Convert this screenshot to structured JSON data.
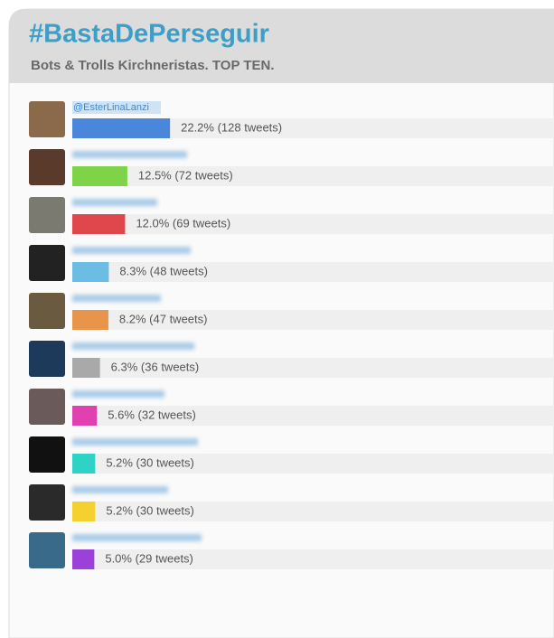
{
  "chart_data": {
    "type": "bar",
    "orientation": "horizontal",
    "title": "#BastaDePerseguir",
    "subtitle": "Bots & Trolls Kirchneristas. TOP TEN.",
    "categories": [
      "@EsterLinaLanzi",
      null,
      null,
      null,
      null,
      null,
      null,
      null,
      null,
      null
    ],
    "values": [
      22.2,
      12.5,
      12.0,
      8.3,
      8.2,
      6.3,
      5.6,
      5.2,
      5.2,
      5.0
    ],
    "value_labels": [
      "22.2% (128 tweets)",
      "12.5% (72 tweets)",
      "12.0% (69 tweets)",
      "8.3% (48 tweets)",
      "8.2% (47 tweets)",
      "6.3% (36 tweets)",
      "5.6% (32 tweets)",
      "5.2% (30 tweets)",
      "5.2% (30 tweets)",
      "5.0% (29 tweets)"
    ],
    "colors": [
      "#4a86d9",
      "#7ed348",
      "#e0474c",
      "#6bbde3",
      "#e8944a",
      "#a9a9a9",
      "#e040b0",
      "#2ed3c6",
      "#f5d130",
      "#9b40d8"
    ]
  }
}
